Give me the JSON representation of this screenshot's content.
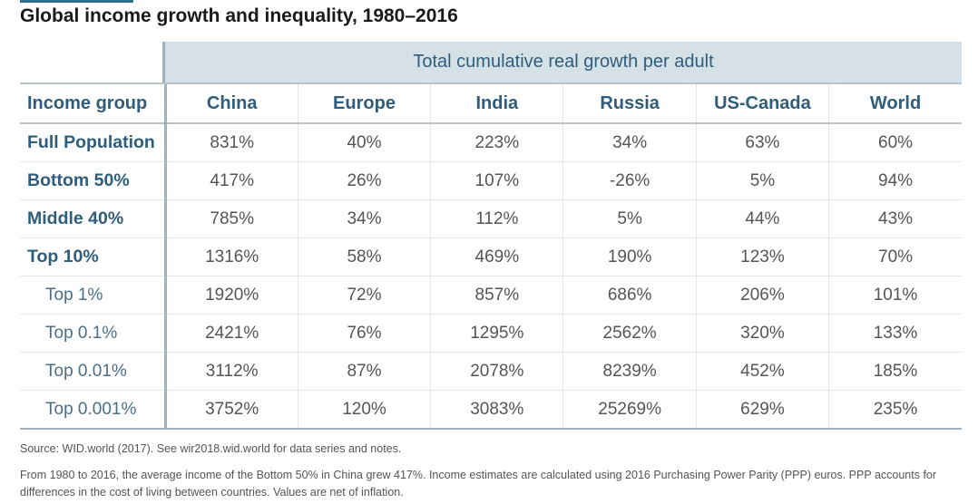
{
  "title": "Global income growth and inequality, 1980–2016",
  "super_header": "Total cumulative real growth per adult",
  "columns": [
    "Income group",
    "China",
    "Europe",
    "India",
    "Russia",
    "US-Canada",
    "World"
  ],
  "rows": [
    {
      "label": "Full Population",
      "kind": "main",
      "values": [
        "831%",
        "40%",
        "223%",
        "34%",
        "63%",
        "60%"
      ]
    },
    {
      "label": "Bottom 50%",
      "kind": "main",
      "values": [
        "417%",
        "26%",
        "107%",
        "-26%",
        "5%",
        "94%"
      ]
    },
    {
      "label": "Middle 40%",
      "kind": "main",
      "values": [
        "785%",
        "34%",
        "112%",
        "5%",
        "44%",
        "43%"
      ]
    },
    {
      "label": "Top 10%",
      "kind": "main",
      "values": [
        "1316%",
        "58%",
        "469%",
        "190%",
        "123%",
        "70%"
      ]
    },
    {
      "label": "Top 1%",
      "kind": "sub",
      "values": [
        "1920%",
        "72%",
        "857%",
        "686%",
        "206%",
        "101%"
      ]
    },
    {
      "label": "Top 0.1%",
      "kind": "sub",
      "values": [
        "2421%",
        "76%",
        "1295%",
        "2562%",
        "320%",
        "133%"
      ]
    },
    {
      "label": "Top 0.01%",
      "kind": "sub",
      "values": [
        "3112%",
        "87%",
        "2078%",
        "8239%",
        "452%",
        "185%"
      ]
    },
    {
      "label": "Top 0.001%",
      "kind": "sub",
      "values": [
        "3752%",
        "120%",
        "3083%",
        "25269%",
        "629%",
        "235%"
      ]
    }
  ],
  "source": "Source: WID.world (2017). See wir2018.wid.world for data series and notes.",
  "note": "From 1980 to 2016, the average income of the Bottom 50% in China grew 417%. Income estimates are calculated using 2016 Purchasing Power Parity (PPP) euros. PPP accounts for differences in the cost of living between countries. Values are net of inflation."
}
